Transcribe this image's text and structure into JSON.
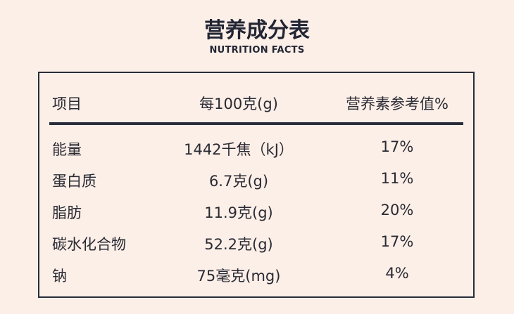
{
  "header": {
    "title": "营养成分表",
    "subtitle": "NUTRITION FACTS"
  },
  "table": {
    "columns": [
      "项目",
      "每100克(g)",
      "营养素参考值%"
    ],
    "rows": [
      [
        "能量",
        "1442千焦（kJ）",
        "17%"
      ],
      [
        "蛋白质",
        "6.7克(g)",
        "11%"
      ],
      [
        "脂肪",
        "11.9克(g)",
        "20%"
      ],
      [
        "碳水化合物",
        "52.2克(g)",
        "17%"
      ],
      [
        "钠",
        "75毫克(mg)",
        "4%"
      ]
    ]
  }
}
